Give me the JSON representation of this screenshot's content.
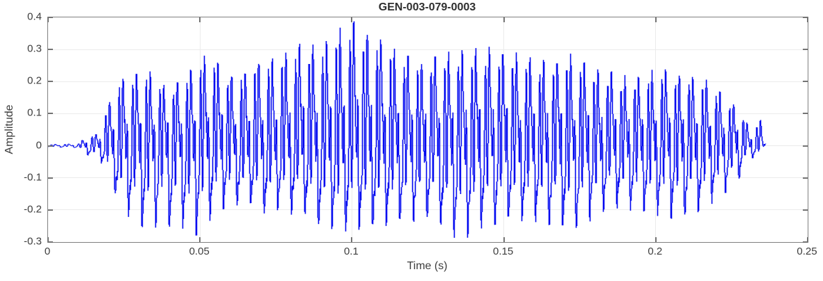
{
  "figure": {
    "title": "GEN-003-079-0003",
    "xlabel": "Time (s)",
    "ylabel": "Amplitude"
  },
  "chart_data": {
    "type": "line",
    "title": "GEN-003-079-0003",
    "xlabel": "Time (s)",
    "ylabel": "Amplitude",
    "xlim": [
      0,
      0.25
    ],
    "ylim": [
      -0.3,
      0.4
    ],
    "xticks": [
      0,
      0.05,
      0.1,
      0.15,
      0.2,
      0.25
    ],
    "xtick_labels": [
      "0",
      "0.05",
      "0.1",
      "0.15",
      "0.2",
      "0.25"
    ],
    "yticks": [
      -0.3,
      -0.2,
      -0.1,
      0,
      0.1,
      0.2,
      0.3,
      0.4
    ],
    "ytick_labels": [
      "-0.3",
      "-0.2",
      "-0.1",
      "0",
      "0.1",
      "0.2",
      "0.3",
      "0.4"
    ],
    "grid": true,
    "legend": null,
    "line_color": "#0007f0",
    "axis_color": "#7f7f7f",
    "grid_color": "#ebebeb",
    "tick_color": "#737373",
    "text_color": "#3d3d3d",
    "signal": {
      "description": "voiced speech-like waveform, single blue trace",
      "t_start": 0.0,
      "t_end": 0.236,
      "f0_hz": 224,
      "harmonic_amps": [
        1.0,
        0.55,
        0.72,
        0.5,
        0.33,
        0.18,
        0.1,
        0.055
      ],
      "harmonic_phases": [
        -1.5708,
        -0.9,
        -2.4,
        0.8,
        -0.2,
        1.4,
        2.6,
        -2.9
      ],
      "am_mod": [
        [
          13.7,
          0.06
        ],
        [
          31.0,
          0.045
        ]
      ],
      "envelope_breakpoints": [
        [
          0.0,
          0.004,
          -0.004
        ],
        [
          0.01,
          0.006,
          -0.006
        ],
        [
          0.0125,
          0.025,
          -0.025
        ],
        [
          0.016,
          0.035,
          -0.035
        ],
        [
          0.0185,
          0.09,
          -0.06
        ],
        [
          0.021,
          0.16,
          -0.12
        ],
        [
          0.024,
          0.22,
          -0.22
        ],
        [
          0.028,
          0.235,
          -0.24
        ],
        [
          0.031,
          0.25,
          -0.26
        ],
        [
          0.034,
          0.23,
          -0.27
        ],
        [
          0.037,
          0.2,
          -0.24
        ],
        [
          0.04,
          0.185,
          -0.265
        ],
        [
          0.044,
          0.21,
          -0.25
        ],
        [
          0.048,
          0.255,
          -0.29
        ],
        [
          0.0535,
          0.295,
          -0.23
        ],
        [
          0.057,
          0.265,
          -0.2
        ],
        [
          0.061,
          0.22,
          -0.19
        ],
        [
          0.066,
          0.235,
          -0.18
        ],
        [
          0.071,
          0.245,
          -0.19
        ],
        [
          0.076,
          0.24,
          -0.18
        ],
        [
          0.08,
          0.27,
          -0.19
        ],
        [
          0.0843,
          0.315,
          -0.21
        ],
        [
          0.088,
          0.3,
          -0.24
        ],
        [
          0.092,
          0.33,
          -0.25
        ],
        [
          0.096,
          0.36,
          -0.26
        ],
        [
          0.101,
          0.38,
          -0.26
        ],
        [
          0.105,
          0.355,
          -0.25
        ],
        [
          0.11,
          0.325,
          -0.25
        ],
        [
          0.115,
          0.305,
          -0.24
        ],
        [
          0.12,
          0.29,
          -0.26
        ],
        [
          0.125,
          0.285,
          -0.25
        ],
        [
          0.13,
          0.285,
          -0.26
        ],
        [
          0.135,
          0.27,
          -0.28
        ],
        [
          0.14,
          0.27,
          -0.24
        ],
        [
          0.145,
          0.275,
          -0.23
        ],
        [
          0.151,
          0.29,
          -0.22
        ],
        [
          0.156,
          0.265,
          -0.22
        ],
        [
          0.161,
          0.255,
          -0.23
        ],
        [
          0.166,
          0.25,
          -0.24
        ],
        [
          0.171,
          0.27,
          -0.25
        ],
        [
          0.176,
          0.25,
          -0.245
        ],
        [
          0.181,
          0.245,
          -0.22
        ],
        [
          0.186,
          0.244,
          -0.21
        ],
        [
          0.191,
          0.23,
          -0.21
        ],
        [
          0.196,
          0.225,
          -0.21
        ],
        [
          0.201,
          0.23,
          -0.205
        ],
        [
          0.206,
          0.212,
          -0.21
        ],
        [
          0.211,
          0.21,
          -0.212
        ],
        [
          0.216,
          0.2,
          -0.19
        ],
        [
          0.22,
          0.17,
          -0.16
        ],
        [
          0.224,
          0.13,
          -0.13
        ],
        [
          0.2275,
          0.12,
          -0.1
        ],
        [
          0.23,
          0.065,
          -0.045
        ],
        [
          0.2325,
          0.055,
          -0.03
        ],
        [
          0.2345,
          0.073,
          -0.025
        ],
        [
          0.236,
          0.005,
          -0.005
        ]
      ]
    }
  }
}
